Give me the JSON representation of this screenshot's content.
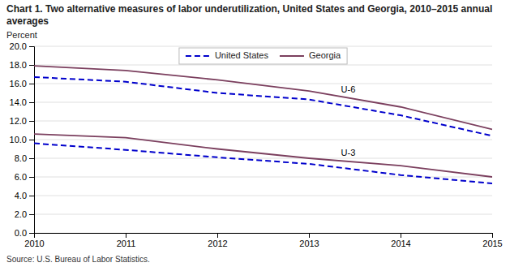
{
  "chart_data": {
    "type": "line",
    "title": "Chart 1. Two alternative measures of labor underutilization, United States and Georgia, 2010–2015 annual averages",
    "y_label": "Percent",
    "source": "Source: U.S. Bureau of Labor Statistics.",
    "x": [
      2010,
      2011,
      2012,
      2013,
      2014,
      2015
    ],
    "series": [
      {
        "name": "United States",
        "color": "#0000cc",
        "line_style": "dashed",
        "values": [
          16.7,
          16.2,
          15.0,
          14.3,
          12.6,
          10.4
        ]
      },
      {
        "name": "Georgia",
        "color": "#7B3F5E",
        "line_style": "solid",
        "values": [
          17.9,
          17.4,
          16.4,
          15.2,
          13.5,
          11.1
        ]
      },
      {
        "color": "#0000cc",
        "line_style": "dashed",
        "values": [
          9.6,
          8.9,
          8.1,
          7.4,
          6.2,
          5.3
        ]
      },
      {
        "color": "#7B3F5E",
        "line_style": "solid",
        "values": [
          10.6,
          10.2,
          9.0,
          8.0,
          7.2,
          6.0
        ]
      }
    ],
    "annotations": [
      {
        "text": "U-6",
        "x": 2013.35,
        "y": 15.3
      },
      {
        "text": "U-3",
        "x": 2013.35,
        "y": 8.5
      }
    ],
    "xlim": [
      2010,
      2015
    ],
    "xticks": [
      2010,
      2011,
      2012,
      2013,
      2014,
      2015
    ],
    "ylim": [
      0.0,
      20.0
    ],
    "yticks": [
      {
        "value": 0.0,
        "label": "0.0"
      },
      {
        "value": 2.0,
        "label": "2.0"
      },
      {
        "value": 4.0,
        "label": "4.0"
      },
      {
        "value": 6.0,
        "label": "6.0"
      },
      {
        "value": 8.0,
        "label": "8.0"
      },
      {
        "value": 10.0,
        "label": "10.0"
      },
      {
        "value": 12.0,
        "label": "12.0"
      },
      {
        "value": 14.0,
        "label": "14.0"
      },
      {
        "value": 16.0,
        "label": "16.0"
      },
      {
        "value": 18.0,
        "label": "18.0"
      },
      {
        "value": 20.0,
        "label": "20.0"
      }
    ],
    "grid": true,
    "legend": "top"
  }
}
